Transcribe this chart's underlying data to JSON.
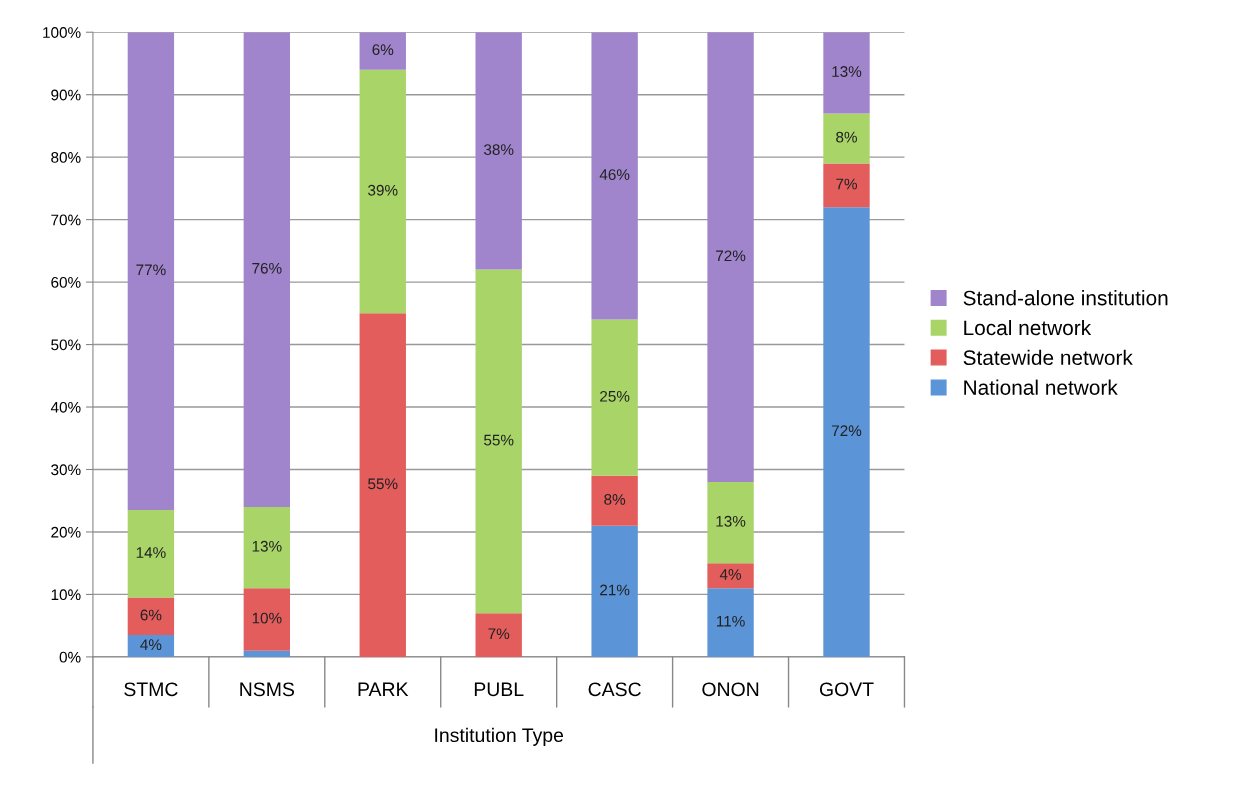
{
  "chart_data": {
    "type": "bar",
    "stacked": true,
    "xlabel": "Institution Type",
    "categories": [
      "STMC",
      "NSMS",
      "PARK",
      "PUBL",
      "CASC",
      "ONON",
      "GOVT"
    ],
    "series": [
      {
        "name": "National network",
        "color": "#5b95d8",
        "values": [
          3.5,
          1,
          0,
          0,
          21,
          11,
          72
        ],
        "value_labels": [
          "4%",
          null,
          null,
          null,
          "21%",
          "11%",
          "72%"
        ]
      },
      {
        "name": "Statewide network",
        "color": "#e35d5d",
        "values": [
          6,
          10,
          55,
          7,
          8,
          4,
          7
        ],
        "value_labels": [
          "6%",
          "10%",
          "55%",
          "7%",
          "8%",
          "4%",
          "7%"
        ]
      },
      {
        "name": "Local network",
        "color": "#a8d468",
        "values": [
          14,
          13,
          39,
          55,
          25,
          13,
          8
        ],
        "value_labels": [
          "14%",
          "13%",
          "39%",
          "55%",
          "25%",
          "13%",
          "8%"
        ]
      },
      {
        "name": "Stand-alone institution",
        "color": "#a084cc",
        "values": [
          76.5,
          76,
          6,
          38,
          46,
          72,
          13
        ],
        "value_labels": [
          "77%",
          "76%",
          "6%",
          "38%",
          "46%",
          "72%",
          "13%"
        ]
      }
    ],
    "ylim": [
      0,
      100
    ],
    "yticks": [
      {
        "value": 0,
        "label": "0%"
      },
      {
        "value": 10,
        "label": "10%"
      },
      {
        "value": 20,
        "label": "20%"
      },
      {
        "value": 30,
        "label": "30%"
      },
      {
        "value": 40,
        "label": "40%"
      },
      {
        "value": 50,
        "label": "50%"
      },
      {
        "value": 60,
        "label": "60%"
      },
      {
        "value": 70,
        "label": "70%"
      },
      {
        "value": 80,
        "label": "80%"
      },
      {
        "value": 90,
        "label": "90%"
      },
      {
        "value": 100,
        "label": "100%"
      }
    ],
    "grid": "y",
    "legend": "right"
  }
}
